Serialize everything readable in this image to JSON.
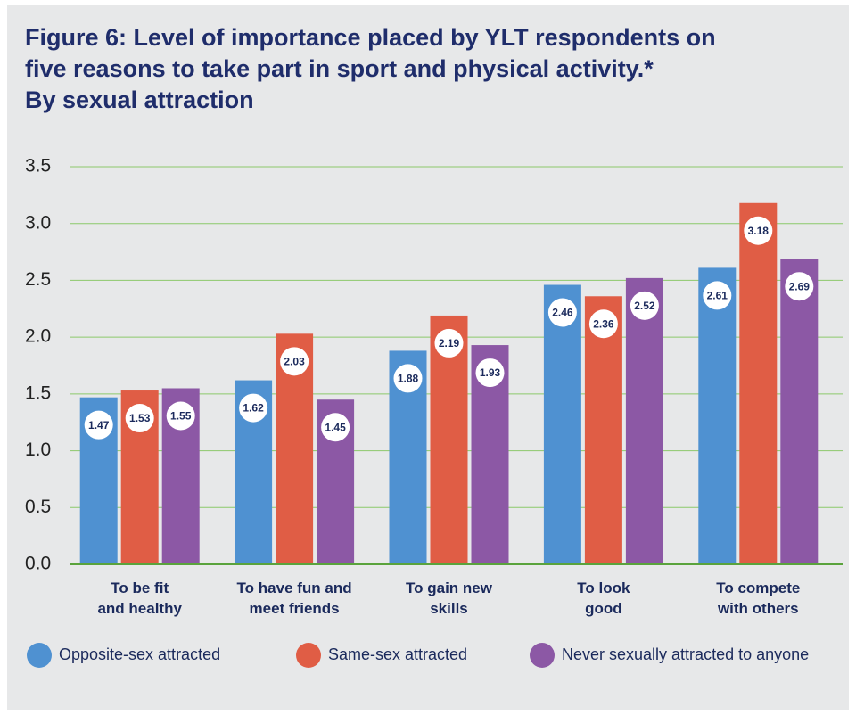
{
  "chart_data": {
    "type": "bar",
    "title": "Figure 6: Level of importance placed by YLT respondents on\nfive reasons to take part in sport and physical activity.*\nBy sexual attraction",
    "categories": [
      "To be fit\nand healthy",
      "To have fun and\nmeet friends",
      "To gain new\nskills",
      "To look\ngood",
      "To compete\nwith others"
    ],
    "series": [
      {
        "name": "Opposite-sex attracted",
        "color": "#4f91d1",
        "values": [
          1.47,
          1.62,
          1.88,
          2.46,
          2.61
        ]
      },
      {
        "name": "Same-sex attracted",
        "color": "#e05d45",
        "values": [
          1.53,
          2.03,
          2.19,
          2.36,
          3.18
        ]
      },
      {
        "name": "Never sexually attracted to anyone",
        "color": "#8c58a5",
        "values": [
          1.55,
          1.45,
          1.93,
          2.52,
          2.69
        ]
      }
    ],
    "ylim": [
      0,
      3.5
    ],
    "yticks": [
      {
        "value": 0,
        "label": "0.0"
      },
      0.5,
      {
        "value": 1,
        "label": "1.0"
      },
      1.5,
      {
        "value": 2,
        "label": "2.0"
      },
      2.5,
      {
        "value": 3,
        "label": "3.0"
      },
      3.5
    ],
    "grid": true,
    "legend": "bottom"
  }
}
